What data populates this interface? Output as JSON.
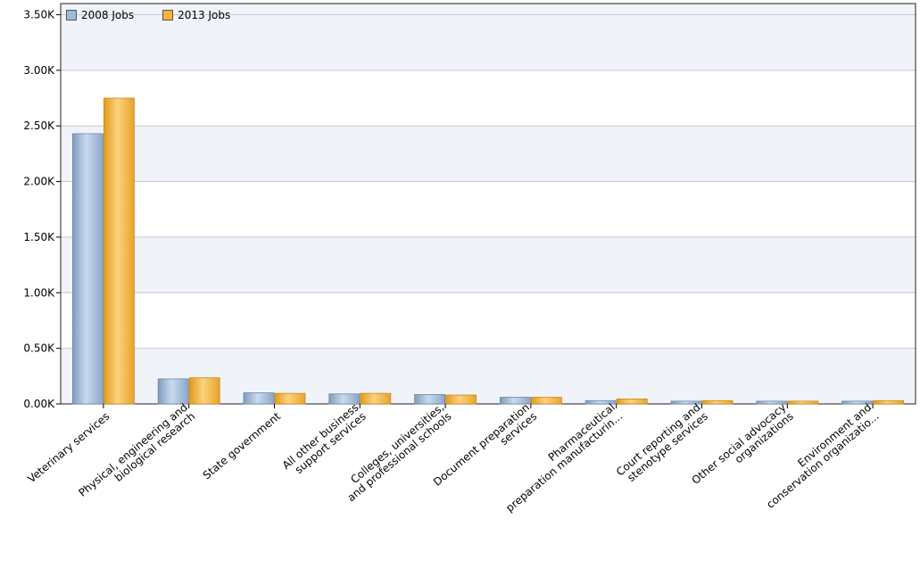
{
  "chart_data": {
    "type": "bar",
    "title": "",
    "xlabel": "",
    "ylabel": "",
    "ylim": [
      0,
      3600
    ],
    "yticks": [
      0,
      500,
      1000,
      1500,
      2000,
      2500,
      3000,
      3500
    ],
    "ytick_labels": [
      "0.00K",
      "0.50K",
      "1.00K",
      "1.50K",
      "2.00K",
      "2.50K",
      "3.00K",
      "3.50K"
    ],
    "categories": [
      [
        "Veterinary services"
      ],
      [
        "Physical, engineering and",
        "biological research"
      ],
      [
        "State government"
      ],
      [
        "All other business",
        "support services"
      ],
      [
        "Colleges, universities,",
        "and professional schools"
      ],
      [
        "Document preparation",
        "services"
      ],
      [
        "Pharmaceutical",
        "preparation manufacturin..."
      ],
      [
        "Court reporting and",
        "stenotype services"
      ],
      [
        "Other social advocacy",
        "organizations"
      ],
      [
        "Environment and",
        "conservation organizatio..."
      ]
    ],
    "series": [
      {
        "name": "2008 Jobs",
        "color": "#9fbad8",
        "values": [
          2430,
          225,
          100,
          90,
          85,
          60,
          30,
          25,
          25,
          25
        ]
      },
      {
        "name": "2013 Jobs",
        "color": "#f6b23a",
        "values": [
          2750,
          235,
          95,
          95,
          80,
          60,
          45,
          30,
          25,
          30
        ]
      }
    ],
    "grid": true,
    "legend": "top-left"
  }
}
